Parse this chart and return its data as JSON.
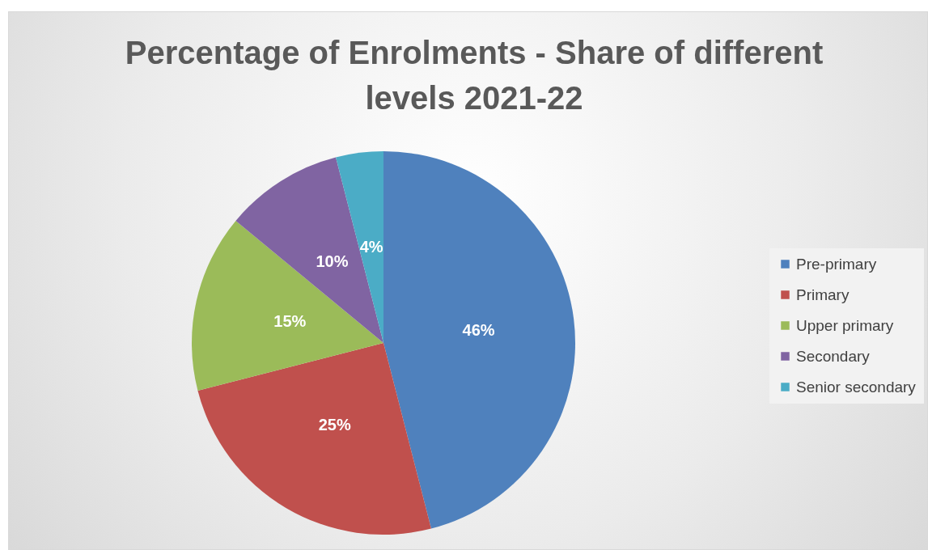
{
  "chart_data": {
    "type": "pie",
    "title": "Percentage of Enrolments - Share of different levels 2021-22",
    "categories": [
      "Pre-primary",
      "Primary",
      "Upper primary",
      "Secondary",
      "Senior secondary"
    ],
    "values": [
      46,
      25,
      15,
      10,
      4
    ],
    "value_labels": [
      "46%",
      "25%",
      "15%",
      "10%",
      "4%"
    ],
    "colors": [
      "#4f81bd",
      "#c0504d",
      "#9bbb59",
      "#8064a2",
      "#4bacc6"
    ],
    "legend": "right"
  }
}
